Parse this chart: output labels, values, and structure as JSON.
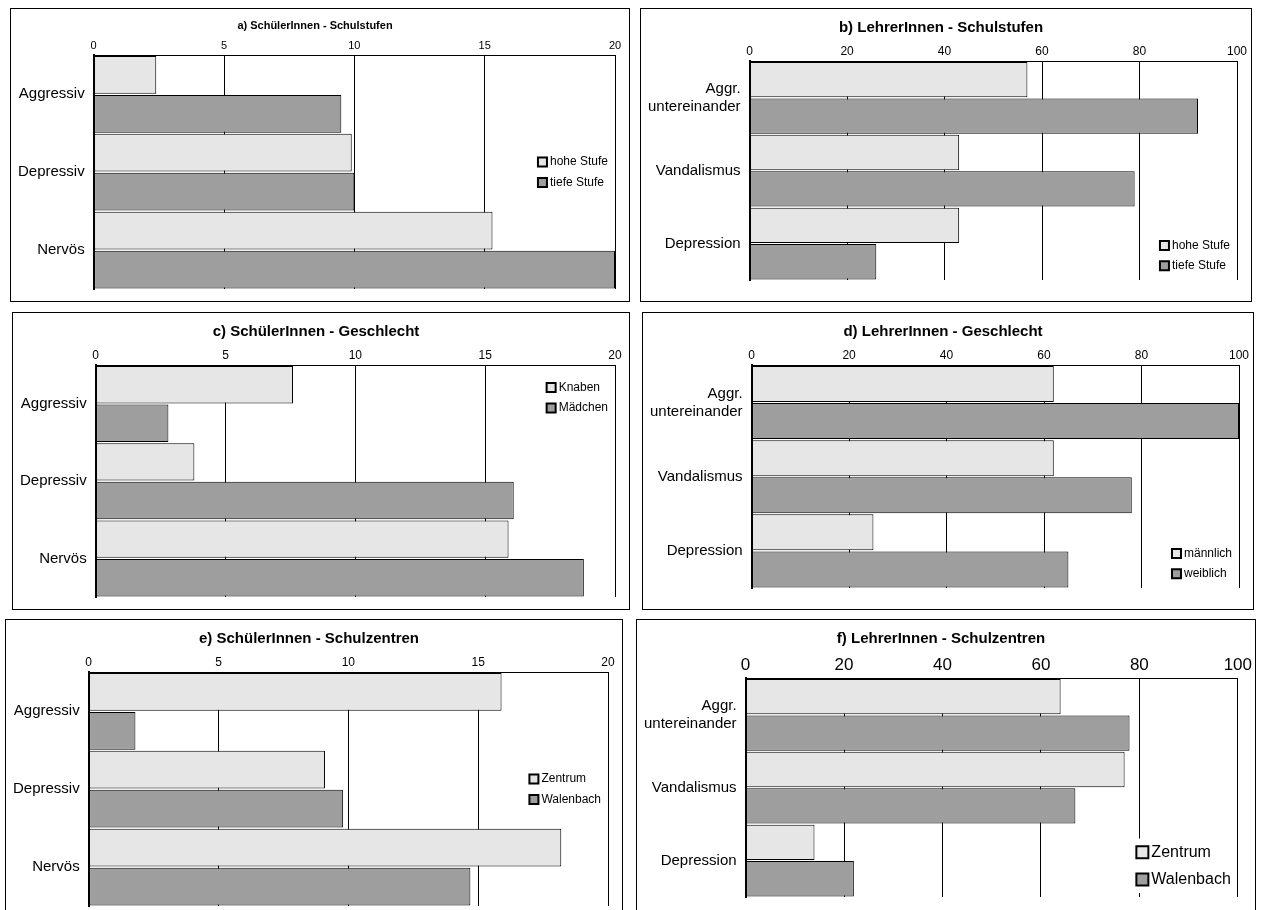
{
  "chart_data": [
    {
      "type": "bar",
      "orientation": "horizontal",
      "title": "a) SchülerInnen - Schulstufen",
      "categories": [
        "Aggressiv",
        "Depressiv",
        "Nervös"
      ],
      "series": [
        {
          "name": "hohe Stufe",
          "color": "#e6e6e6",
          "values": [
            2.4,
            9.9,
            15.3
          ]
        },
        {
          "name": "tiefe Stufe",
          "color": "#9e9e9e",
          "values": [
            9.5,
            10.0,
            20
          ]
        }
      ],
      "xlim": [
        0,
        20
      ],
      "xticks": [
        0,
        5,
        10,
        15,
        20
      ],
      "grid": "x",
      "legend": "right"
    },
    {
      "type": "bar",
      "orientation": "horizontal",
      "title": "b) LehrerInnen - Schulstufen",
      "categories": [
        "Aggr. untereinander",
        "Vandalismus",
        "Depression"
      ],
      "series": [
        {
          "name": "hohe Stufe",
          "color": "#e6e6e6",
          "values": [
            57,
            43,
            43
          ]
        },
        {
          "name": "tiefe Stufe",
          "color": "#9e9e9e",
          "values": [
            92,
            79,
            26
          ]
        }
      ],
      "xlim": [
        0,
        100
      ],
      "xticks": [
        0,
        20,
        40,
        60,
        80,
        100
      ],
      "grid": "x",
      "legend": "bottom right"
    },
    {
      "type": "bar",
      "orientation": "horizontal",
      "title": "c) SchülerInnen - Geschlecht",
      "categories": [
        "Aggressiv",
        "Depressiv",
        "Nervös"
      ],
      "series": [
        {
          "name": "Knaben",
          "color": "#e6e6e6",
          "values": [
            7.6,
            3.8,
            15.9
          ]
        },
        {
          "name": "Mädchen",
          "color": "#9e9e9e",
          "values": [
            2.8,
            16.1,
            18.8
          ]
        }
      ],
      "xlim": [
        0,
        20
      ],
      "xticks": [
        0,
        5,
        10,
        15,
        20
      ],
      "grid": "x",
      "legend": "top right"
    },
    {
      "type": "bar",
      "orientation": "horizontal",
      "title": "d) LehrerInnen - Geschlecht",
      "categories": [
        "Aggr. untereinander",
        "Vandalismus",
        "Depression"
      ],
      "series": [
        {
          "name": "männlich",
          "color": "#e6e6e6",
          "values": [
            62,
            62,
            25
          ]
        },
        {
          "name": "weiblich",
          "color": "#9e9e9e",
          "values": [
            100,
            78,
            65
          ]
        }
      ],
      "xlim": [
        0,
        100
      ],
      "xticks": [
        0,
        20,
        40,
        60,
        80,
        100
      ],
      "grid": "x",
      "legend": "bottom right"
    },
    {
      "type": "bar",
      "orientation": "horizontal",
      "title": "e) SchülerInnen - Schulzentren",
      "categories": [
        "Aggressiv",
        "Depressiv",
        "Nervös"
      ],
      "series": [
        {
          "name": "Zentrum",
          "color": "#e6e6e6",
          "values": [
            15.9,
            9.1,
            18.2
          ]
        },
        {
          "name": "Walenbach",
          "color": "#9e9e9e",
          "values": [
            1.8,
            9.8,
            14.7
          ]
        }
      ],
      "xlim": [
        0,
        20
      ],
      "xticks": [
        0,
        5,
        10,
        15,
        20
      ],
      "grid": "x",
      "legend": "right"
    },
    {
      "type": "bar",
      "orientation": "horizontal",
      "title": "f) LehrerInnen - Schulzentren",
      "categories": [
        "Aggr. untereinander",
        "Vandalismus",
        "Depression"
      ],
      "series": [
        {
          "name": "Zentrum",
          "color": "#e6e6e6",
          "values": [
            64,
            77,
            14
          ]
        },
        {
          "name": "Walenbach",
          "color": "#9e9e9e",
          "values": [
            78,
            67,
            22
          ]
        }
      ],
      "xlim": [
        0,
        100
      ],
      "xticks": [
        0,
        20,
        40,
        60,
        80,
        100
      ],
      "grid": "x",
      "legend": "bottom right"
    }
  ]
}
